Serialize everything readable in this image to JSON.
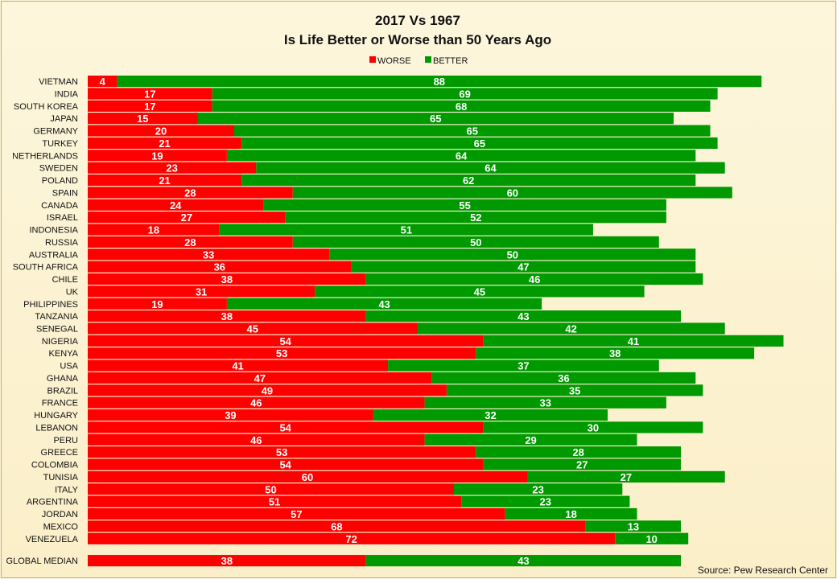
{
  "chart_data": {
    "type": "bar",
    "orientation": "horizontal",
    "stacked": true,
    "title_line1": "2017 Vs 1967",
    "title_line2": "Is Life Better or Worse than 50 Years Ago",
    "legend_position": "top-center",
    "grid": false,
    "series": [
      {
        "name": "WORSE",
        "color": "#ff0000"
      },
      {
        "name": "BETTER",
        "color": "#009900"
      }
    ],
    "rows": [
      {
        "label": "VIETMAN",
        "worse": 4,
        "better": 88
      },
      {
        "label": "INDIA",
        "worse": 17,
        "better": 69
      },
      {
        "label": "SOUTH KOREA",
        "worse": 17,
        "better": 68
      },
      {
        "label": "JAPAN",
        "worse": 15,
        "better": 65
      },
      {
        "label": "GERMANY",
        "worse": 20,
        "better": 65
      },
      {
        "label": "TURKEY",
        "worse": 21,
        "better": 65
      },
      {
        "label": "NETHERLANDS",
        "worse": 19,
        "better": 64
      },
      {
        "label": "SWEDEN",
        "worse": 23,
        "better": 64
      },
      {
        "label": "POLAND",
        "worse": 21,
        "better": 62
      },
      {
        "label": "SPAIN",
        "worse": 28,
        "better": 60
      },
      {
        "label": "CANADA",
        "worse": 24,
        "better": 55
      },
      {
        "label": "ISRAEL",
        "worse": 27,
        "better": 52
      },
      {
        "label": "INDONESIA",
        "worse": 18,
        "better": 51
      },
      {
        "label": "RUSSIA",
        "worse": 28,
        "better": 50
      },
      {
        "label": "AUSTRALIA",
        "worse": 33,
        "better": 50
      },
      {
        "label": "SOUTH AFRICA",
        "worse": 36,
        "better": 47
      },
      {
        "label": "CHILE",
        "worse": 38,
        "better": 46
      },
      {
        "label": "UK",
        "worse": 31,
        "better": 45
      },
      {
        "label": "PHILIPPINES",
        "worse": 19,
        "better": 43
      },
      {
        "label": "TANZANIA",
        "worse": 38,
        "better": 43
      },
      {
        "label": "SENEGAL",
        "worse": 45,
        "better": 42
      },
      {
        "label": "NIGERIA",
        "worse": 54,
        "better": 41
      },
      {
        "label": "KENYA",
        "worse": 53,
        "better": 38
      },
      {
        "label": "USA",
        "worse": 41,
        "better": 37
      },
      {
        "label": "GHANA",
        "worse": 47,
        "better": 36
      },
      {
        "label": "BRAZIL",
        "worse": 49,
        "better": 35
      },
      {
        "label": "FRANCE",
        "worse": 46,
        "better": 33
      },
      {
        "label": "HUNGARY",
        "worse": 39,
        "better": 32
      },
      {
        "label": "LEBANON",
        "worse": 54,
        "better": 30
      },
      {
        "label": "PERU",
        "worse": 46,
        "better": 29
      },
      {
        "label": "GREECE",
        "worse": 53,
        "better": 28
      },
      {
        "label": "COLOMBIA",
        "worse": 54,
        "better": 27
      },
      {
        "label": "TUNISIA",
        "worse": 60,
        "better": 27
      },
      {
        "label": "ITALY",
        "worse": 50,
        "better": 23
      },
      {
        "label": "ARGENTINA",
        "worse": 51,
        "better": 23
      },
      {
        "label": "JORDAN",
        "worse": 57,
        "better": 18
      },
      {
        "label": "MEXICO",
        "worse": 68,
        "better": 13
      },
      {
        "label": "VENEZUELA",
        "worse": 72,
        "better": 10
      },
      {
        "label": "GLOBAL MEDIAN",
        "worse": 38,
        "better": 43,
        "separated": true
      }
    ],
    "source": "Source: Pew Research Center"
  }
}
